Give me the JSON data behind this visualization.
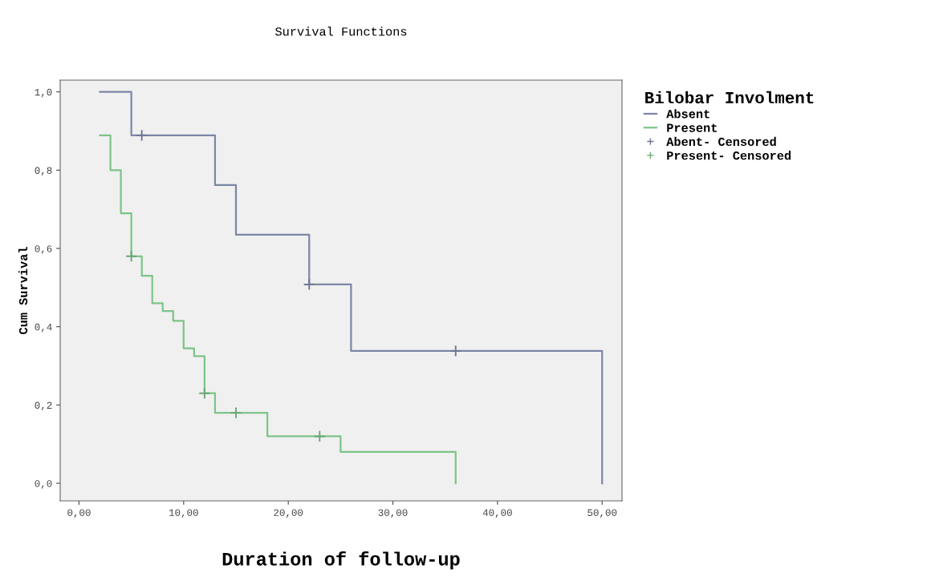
{
  "chart_data": {
    "type": "step",
    "title": "Survival Functions",
    "xlabel": "Duration of follow-up",
    "ylabel": "Cum Survival",
    "legend_title": "Bilobar Involment",
    "series": [
      {
        "name": "Absent",
        "color": "#7c86a6",
        "x": [
          2,
          5,
          13,
          15,
          22,
          26,
          50,
          50
        ],
        "values": [
          1.0,
          0.889,
          0.762,
          0.635,
          0.508,
          0.338,
          0.338,
          0
        ]
      },
      {
        "name": "Present",
        "color": "#7cc488",
        "x": [
          2,
          3,
          4,
          5,
          6,
          7,
          8,
          9,
          10,
          11,
          12,
          13,
          18,
          25,
          36,
          36
        ],
        "values": [
          0.889,
          0.8,
          0.69,
          0.58,
          0.53,
          0.46,
          0.44,
          0.415,
          0.345,
          0.325,
          0.23,
          0.18,
          0.12,
          0.08,
          0.08,
          0
        ]
      },
      {
        "name": "Abent- Censored",
        "type": "scatter",
        "marker": "cross",
        "color": "#6f7894",
        "x": [
          6,
          22,
          36
        ],
        "values": [
          0.889,
          0.508,
          0.338
        ]
      },
      {
        "name": "Present- Censored",
        "type": "scatter",
        "marker": "cross",
        "color": "#6aa876",
        "x": [
          5,
          12,
          15,
          23
        ],
        "values": [
          0.58,
          0.23,
          0.18,
          0.12
        ]
      }
    ],
    "xlim": [
      -1.8,
      51.9
    ],
    "ylim": [
      -0.045,
      1.03
    ],
    "xticks": [
      {
        "value": 0,
        "label": "0,00"
      },
      {
        "value": 10,
        "label": "10,00"
      },
      {
        "value": 20,
        "label": "20,00"
      },
      {
        "value": 30,
        "label": "30,00"
      },
      {
        "value": 40,
        "label": "40,00"
      },
      {
        "value": 50,
        "label": "50,00"
      }
    ],
    "yticks": [
      {
        "value": 0,
        "label": "0,0"
      },
      {
        "value": 0.2,
        "label": "0,2"
      },
      {
        "value": 0.4,
        "label": "0,4"
      },
      {
        "value": 0.6,
        "label": "0,6"
      },
      {
        "value": 0.8,
        "label": "0,8"
      },
      {
        "value": 1.0,
        "label": "1,0"
      }
    ],
    "grid": false,
    "legend": "right"
  }
}
